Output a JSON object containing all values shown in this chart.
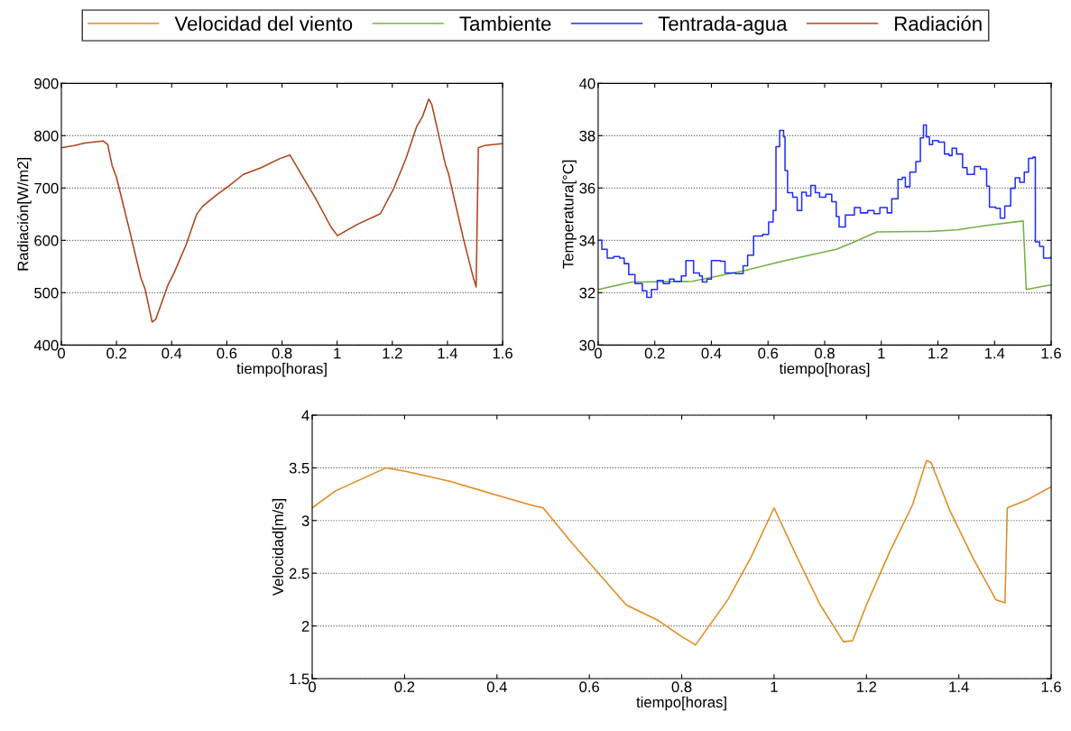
{
  "chart_data": [
    {
      "type": "line",
      "ylabel": "Radiación[W/m2]",
      "xlabel": "tiempo[horas]",
      "xlim": [
        0,
        1.6
      ],
      "xticks": [
        0,
        0.2,
        0.4,
        0.6,
        0.8,
        1,
        1.2,
        1.4,
        1.6
      ],
      "ylim": [
        400,
        900
      ],
      "yticks": [
        400,
        500,
        600,
        700,
        800,
        900
      ],
      "grid": "y",
      "legend": "top",
      "series": [
        {
          "name": "Radiación",
          "color": "#b0401a",
          "x": [
            0,
            0.047,
            0.085,
            0.151,
            0.168,
            0.184,
            0.2,
            0.244,
            0.288,
            0.304,
            0.329,
            0.342,
            0.386,
            0.408,
            0.452,
            0.49,
            0.512,
            0.561,
            0.605,
            0.66,
            0.725,
            0.791,
            0.829,
            0.867,
            0.922,
            0.977,
            1.001,
            1.075,
            1.157,
            1.206,
            1.25,
            1.288,
            1.31,
            1.332,
            1.343,
            1.365,
            1.392,
            1.403,
            1.458,
            1.491,
            1.504,
            1.512,
            1.534,
            1.6
          ],
          "values": [
            777,
            781,
            786,
            790,
            783,
            743,
            720,
            626,
            529,
            506,
            444,
            449,
            514,
            537,
            591,
            649,
            665,
            686,
            703,
            726,
            739,
            756,
            763,
            729,
            680,
            626,
            609,
            631,
            651,
            700,
            757,
            817,
            837,
            870,
            860,
            809,
            746,
            729,
            603,
            534,
            511,
            777,
            781,
            785
          ]
        }
      ]
    },
    {
      "type": "line",
      "ylabel": "Temperatura[°C]",
      "xlabel": "tiempo[horas]",
      "xlim": [
        0,
        1.6
      ],
      "xticks": [
        0,
        0.2,
        0.4,
        0.6,
        0.8,
        1,
        1.2,
        1.4,
        1.6
      ],
      "ylim": [
        30,
        40
      ],
      "yticks": [
        30,
        32,
        34,
        36,
        38,
        40
      ],
      "grid": "y",
      "legend": "top",
      "series": [
        {
          "name": "Tambiente",
          "color": "#77b041",
          "x": [
            0,
            0.119,
            0.331,
            0.522,
            0.65,
            0.841,
            0.894,
            0.984,
            1.17,
            1.266,
            1.372,
            1.501,
            1.512,
            1.6
          ],
          "values": [
            32.12,
            32.41,
            32.43,
            32.86,
            33.2,
            33.66,
            33.89,
            34.32,
            34.34,
            34.4,
            34.57,
            34.74,
            32.12,
            32.3
          ]
        },
        {
          "name": "Tentrada-agua",
          "color": "#1f2bff",
          "type": "step",
          "x": [
            0,
            0.013,
            0.032,
            0.055,
            0.076,
            0.092,
            0.108,
            0.13,
            0.156,
            0.172,
            0.188,
            0.209,
            0.23,
            0.252,
            0.268,
            0.294,
            0.31,
            0.329,
            0.337,
            0.358,
            0.368,
            0.384,
            0.4,
            0.432,
            0.448,
            0.485,
            0.512,
            0.528,
            0.549,
            0.581,
            0.602,
            0.618,
            0.628,
            0.641,
            0.655,
            0.66,
            0.669,
            0.687,
            0.703,
            0.719,
            0.735,
            0.751,
            0.767,
            0.782,
            0.804,
            0.825,
            0.841,
            0.851,
            0.873,
            0.905,
            0.926,
            0.952,
            0.974,
            0.995,
            1.021,
            1.037,
            1.059,
            1.074,
            1.085,
            1.101,
            1.122,
            1.138,
            1.149,
            1.159,
            1.17,
            1.181,
            1.202,
            1.223,
            1.239,
            1.25,
            1.266,
            1.287,
            1.303,
            1.329,
            1.35,
            1.372,
            1.382,
            1.404,
            1.42,
            1.436,
            1.457,
            1.473,
            1.489,
            1.505,
            1.52,
            1.536,
            1.544,
            1.559,
            1.573,
            1.6
          ],
          "values": [
            34.0,
            33.66,
            33.32,
            33.38,
            33.32,
            33.11,
            32.69,
            32.35,
            32.07,
            31.82,
            32.12,
            32.47,
            32.35,
            32.52,
            32.43,
            32.64,
            33.23,
            33.23,
            32.75,
            32.64,
            32.41,
            32.52,
            33.23,
            33.2,
            32.75,
            32.73,
            33.03,
            33.43,
            34.17,
            34.23,
            34.7,
            35.14,
            37.58,
            38.2,
            37.95,
            36.67,
            35.82,
            35.65,
            35.14,
            35.84,
            35.7,
            36.1,
            35.82,
            35.65,
            35.76,
            35.48,
            34.91,
            34.51,
            34.97,
            35.25,
            35.05,
            35.14,
            35.02,
            35.25,
            35.05,
            35.59,
            36.33,
            36.41,
            36.05,
            36.61,
            37.01,
            37.92,
            38.41,
            37.95,
            37.66,
            37.81,
            37.75,
            37.3,
            37.24,
            37.52,
            37.3,
            36.78,
            36.52,
            36.82,
            36.73,
            36.07,
            35.27,
            35.23,
            34.85,
            35.31,
            35.99,
            36.39,
            36.22,
            36.61,
            37.13,
            37.18,
            33.94,
            33.77,
            33.32,
            33.38
          ]
        }
      ]
    },
    {
      "type": "line",
      "ylabel": "Velocidad[m/s]",
      "xlabel": "tiempo[horas]",
      "xlim": [
        0,
        1.6
      ],
      "xticks": [
        0,
        0.2,
        0.4,
        0.6,
        0.8,
        1,
        1.2,
        1.4,
        1.6
      ],
      "ylim": [
        1.5,
        4
      ],
      "yticks": [
        1.5,
        2,
        2.5,
        3,
        3.5,
        4
      ],
      "grid": "y",
      "legend": "top",
      "series": [
        {
          "name": "Velocidad del viento",
          "color": "#e08a1e",
          "x": [
            0,
            0.05,
            0.1,
            0.16,
            0.2,
            0.3,
            0.4,
            0.48,
            0.5,
            0.56,
            0.62,
            0.68,
            0.75,
            0.8,
            0.83,
            0.9,
            0.95,
            1.0,
            1.05,
            1.1,
            1.15,
            1.17,
            1.2,
            1.25,
            1.3,
            1.33,
            1.34,
            1.38,
            1.43,
            1.48,
            1.5,
            1.505,
            1.55,
            1.6
          ],
          "values": [
            3.12,
            3.28,
            3.38,
            3.5,
            3.47,
            3.37,
            3.24,
            3.14,
            3.12,
            2.8,
            2.5,
            2.2,
            2.05,
            1.9,
            1.82,
            2.25,
            2.65,
            3.12,
            2.65,
            2.2,
            1.85,
            1.86,
            2.2,
            2.7,
            3.15,
            3.57,
            3.55,
            3.1,
            2.65,
            2.25,
            2.22,
            3.12,
            3.2,
            3.32
          ]
        }
      ]
    }
  ]
}
